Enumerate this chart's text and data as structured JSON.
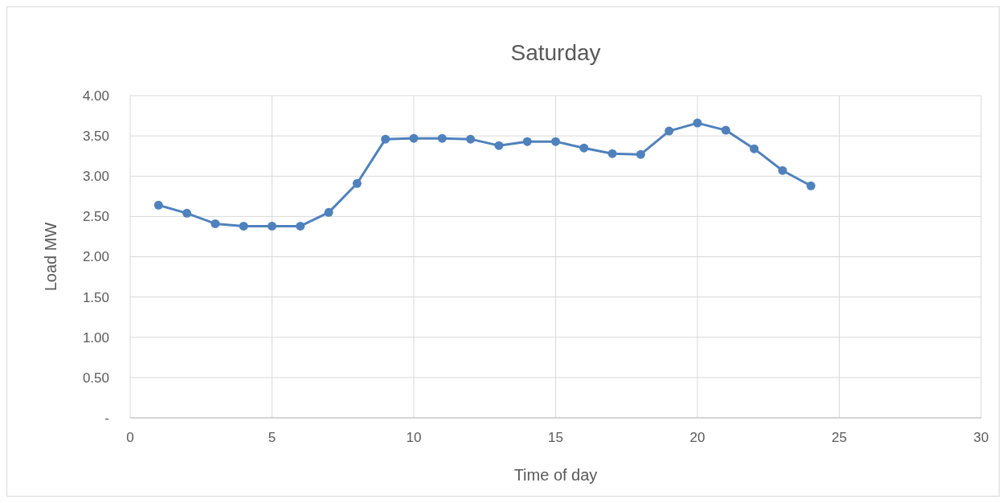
{
  "chart_data": {
    "type": "line",
    "title": "Saturday",
    "xlabel": "Time of day",
    "ylabel": "Load MW",
    "x": [
      1,
      2,
      3,
      4,
      5,
      6,
      7,
      8,
      9,
      10,
      11,
      12,
      13,
      14,
      15,
      16,
      17,
      18,
      19,
      20,
      21,
      22,
      23,
      24
    ],
    "series": [
      {
        "color": "#4f81bd",
        "values": [
          2.64,
          2.54,
          2.41,
          2.38,
          2.38,
          2.38,
          2.55,
          2.91,
          3.46,
          3.47,
          3.47,
          3.46,
          3.38,
          3.43,
          3.43,
          3.35,
          3.28,
          3.27,
          3.56,
          3.66,
          3.57,
          3.34,
          3.07,
          2.88
        ]
      }
    ],
    "xlim": [
      0,
      30
    ],
    "xticks": [
      0,
      5,
      10,
      15,
      20,
      25,
      30
    ],
    "ylim": [
      0,
      4
    ],
    "yticks": [
      {
        "value": 0,
        "label": "-"
      },
      {
        "value": 0.5,
        "label": "0.50"
      },
      {
        "value": 1,
        "label": "1.00"
      },
      {
        "value": 1.5,
        "label": "1.50"
      },
      {
        "value": 2,
        "label": "2.00"
      },
      {
        "value": 2.5,
        "label": "2.50"
      },
      {
        "value": 3,
        "label": "3.00"
      },
      {
        "value": 3.5,
        "label": "3.50"
      },
      {
        "value": 4,
        "label": "4.00"
      }
    ],
    "grid": true,
    "marker": "circle",
    "line_style": "solid"
  }
}
